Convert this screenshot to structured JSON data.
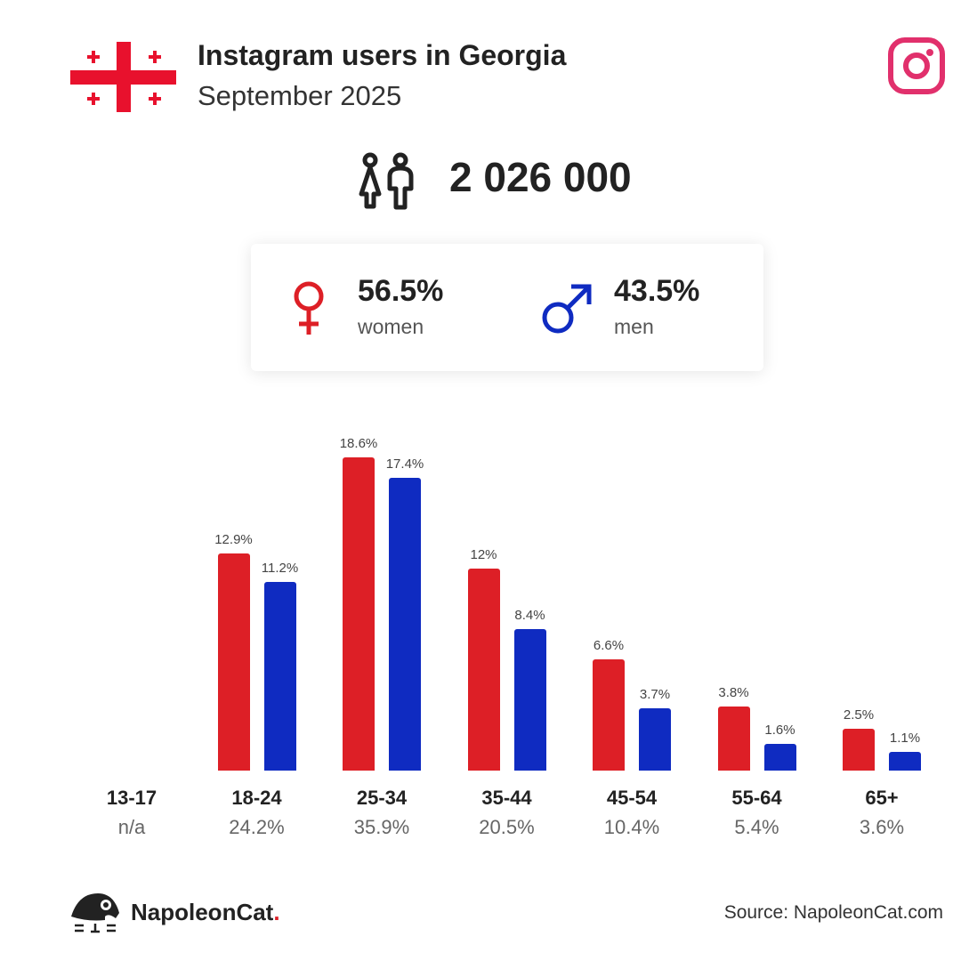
{
  "header": {
    "title": "Instagram users in Georgia",
    "subtitle": "September 2025"
  },
  "total_users": "2 026 000",
  "gender": {
    "women": {
      "pct": "56.5%",
      "label": "women"
    },
    "men": {
      "pct": "43.5%",
      "label": "men"
    }
  },
  "colors": {
    "women": "#dd1f26",
    "men": "#0f2bc1",
    "instagram": "#e1306c"
  },
  "chart_data": {
    "type": "bar",
    "categories": [
      "13-17",
      "18-24",
      "25-34",
      "35-44",
      "45-54",
      "55-64",
      "65+"
    ],
    "category_totals": [
      "n/a",
      "24.2%",
      "35.9%",
      "20.5%",
      "10.4%",
      "5.4%",
      "3.6%"
    ],
    "series": [
      {
        "name": "women",
        "values": [
          null,
          12.9,
          18.6,
          12,
          6.6,
          3.8,
          2.5
        ],
        "labels": [
          "",
          "12.9%",
          "18.6%",
          "12%",
          "6.6%",
          "3.8%",
          "2.5%"
        ]
      },
      {
        "name": "men",
        "values": [
          null,
          11.2,
          17.4,
          8.4,
          3.7,
          1.6,
          1.1
        ],
        "labels": [
          "",
          "11.2%",
          "17.4%",
          "8.4%",
          "3.7%",
          "1.6%",
          "1.1%"
        ]
      }
    ],
    "ylim": [
      0,
      18.6
    ]
  },
  "footer": {
    "brand": "NapoleonCat",
    "brand_dot": ".",
    "source": "Source: NapoleonCat.com"
  }
}
